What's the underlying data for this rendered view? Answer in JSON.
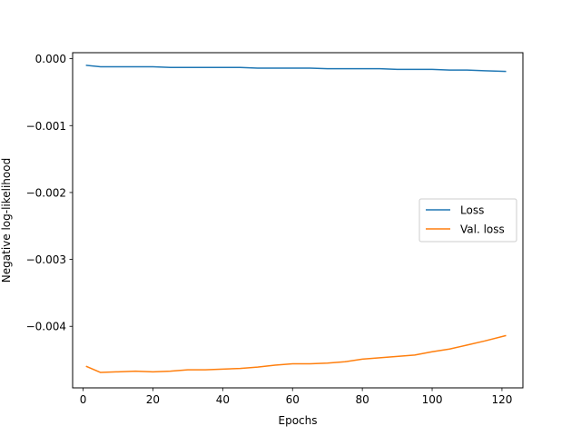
{
  "chart_data": {
    "type": "line",
    "title": "",
    "xlabel": "Epochs",
    "ylabel": "Negative log-likelihood",
    "xlim": [
      -3,
      126
    ],
    "ylim": [
      -0.00492,
      9e-05
    ],
    "xticks": [
      0,
      20,
      40,
      60,
      80,
      100,
      120
    ],
    "yticks": [
      0.0,
      -0.001,
      -0.002,
      -0.003,
      -0.004
    ],
    "ytick_labels": [
      "0.000",
      "−0.001",
      "−0.002",
      "−0.003",
      "−0.004"
    ],
    "grid": false,
    "legend": {
      "position": "center-right",
      "entries": [
        "Loss",
        "Val. loss"
      ]
    },
    "x": [
      1,
      5,
      10,
      15,
      20,
      25,
      30,
      35,
      40,
      45,
      50,
      55,
      60,
      65,
      70,
      75,
      80,
      85,
      90,
      95,
      100,
      105,
      110,
      115,
      121
    ],
    "series": [
      {
        "name": "Loss",
        "color": "#1f77b4",
        "values": [
          -0.0001,
          -0.00012,
          -0.00012,
          -0.00012,
          -0.00012,
          -0.00013,
          -0.00013,
          -0.00013,
          -0.00013,
          -0.00013,
          -0.00014,
          -0.00014,
          -0.00014,
          -0.00014,
          -0.00015,
          -0.00015,
          -0.00015,
          -0.00015,
          -0.00016,
          -0.00016,
          -0.00016,
          -0.00017,
          -0.00017,
          -0.00018,
          -0.00019
        ]
      },
      {
        "name": "Val. loss",
        "color": "#ff7f0e",
        "values": [
          -0.0046,
          -0.00469,
          -0.00468,
          -0.00467,
          -0.00468,
          -0.00467,
          -0.00465,
          -0.00465,
          -0.00464,
          -0.00463,
          -0.00461,
          -0.00458,
          -0.00456,
          -0.00456,
          -0.00455,
          -0.00453,
          -0.00449,
          -0.00447,
          -0.00445,
          -0.00443,
          -0.00438,
          -0.00434,
          -0.00428,
          -0.00422,
          -0.00414
        ]
      }
    ]
  }
}
